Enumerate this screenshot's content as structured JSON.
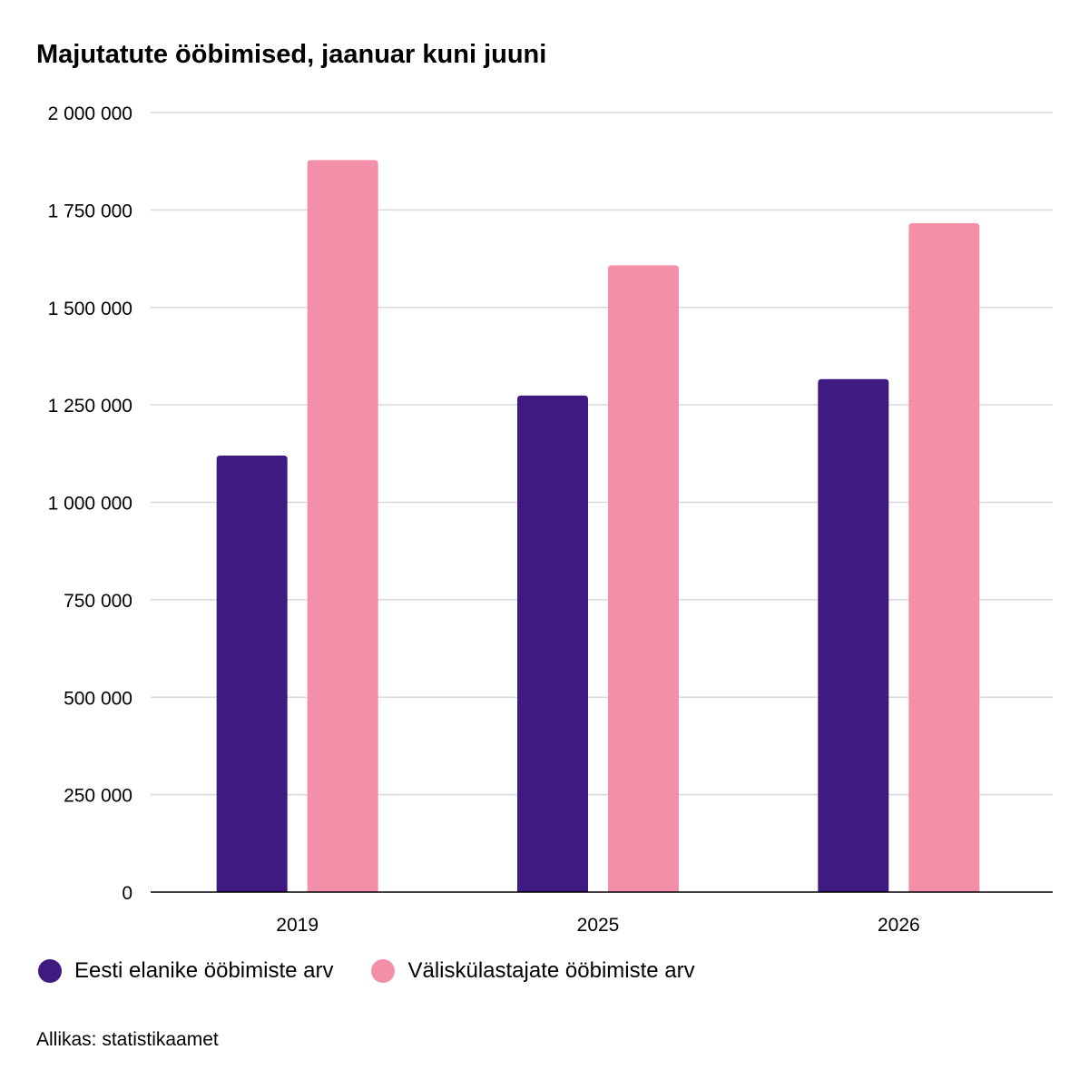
{
  "chart_data": {
    "type": "bar",
    "title": "Majutatute ööbimised, jaanuar kuni juuni",
    "categories": [
      "2019",
      "2025",
      "2026"
    ],
    "series": [
      {
        "name": "Eesti elanike ööbimiste arv",
        "color": "#3f1a80",
        "values": [
          1120000,
          1274000,
          1316000
        ]
      },
      {
        "name": "Väliskülastajate ööbimiste arv",
        "color": "#f48faa",
        "values": [
          1878000,
          1608000,
          1716000
        ]
      }
    ],
    "ylim": [
      0,
      2000000
    ],
    "yticks": [
      {
        "value": 0,
        "label": "0"
      },
      {
        "value": 250000,
        "label": "250 000"
      },
      {
        "value": 500000,
        "label": "500 000"
      },
      {
        "value": 750000,
        "label": "750 000"
      },
      {
        "value": 1000000,
        "label": "1 000 000"
      },
      {
        "value": 1250000,
        "label": "1 250 000"
      },
      {
        "value": 1500000,
        "label": "1 500 000"
      },
      {
        "value": 1750000,
        "label": "1 750 000"
      },
      {
        "value": 2000000,
        "label": "2 000 000"
      }
    ],
    "grid": true,
    "legend_position": "bottom-left",
    "source": "Allikas: statistikaamet"
  }
}
